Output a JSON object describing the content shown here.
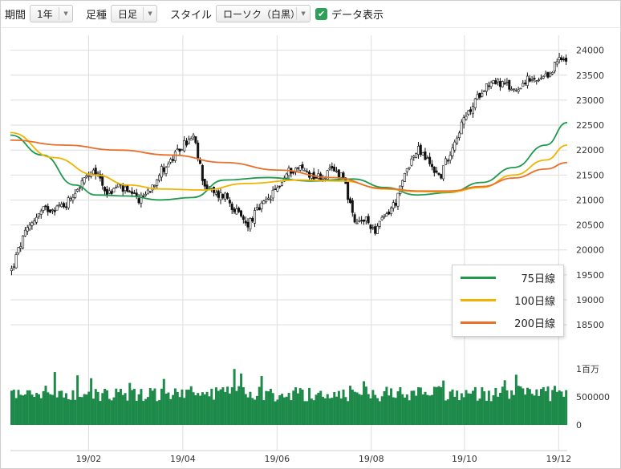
{
  "toolbar": {
    "period_label": "期間",
    "period_value": "1年",
    "candle_label": "足種",
    "candle_value": "日足",
    "style_label": "スタイル",
    "style_value": "ローソク（白黒）",
    "show_data_label": "データ表示",
    "show_data_checked": true
  },
  "colors": {
    "volume": "#1e8a4a",
    "candle": "#111111",
    "ma75": "#1f9a4c",
    "ma100": "#f0b400",
    "ma200": "#e8702a",
    "grid": "#dedede"
  },
  "legend": [
    {
      "label": "75日線",
      "color": "#1f9a4c"
    },
    {
      "label": "100日線",
      "color": "#f0b400"
    },
    {
      "label": "200日線",
      "color": "#e8702a"
    }
  ],
  "chart_data": {
    "type": "candlestick",
    "x_tick_labels": [
      "19/02",
      "19/04",
      "19/06",
      "19/08",
      "19/10",
      "19/12"
    ],
    "price_axis": {
      "ticks": [
        18500,
        19000,
        19500,
        20000,
        20500,
        21000,
        21500,
        22000,
        22500,
        23000,
        23500,
        24000
      ],
      "range": [
        18100,
        24300
      ],
      "labels": [
        "18500",
        "19000",
        "19500",
        "20000",
        "20500",
        "21000",
        "21500",
        "22000",
        "22500",
        "23000",
        "23500",
        "24000"
      ]
    },
    "volume_axis": {
      "range": [
        0,
        1200000
      ],
      "ticks": [
        0,
        500000,
        1000000
      ],
      "labels": [
        "0",
        "500000",
        "1百万"
      ]
    },
    "close_anchors": [
      {
        "week": 0,
        "close": 19600
      },
      {
        "week": 1,
        "close": 20200
      },
      {
        "week": 2,
        "close": 20600
      },
      {
        "week": 3,
        "close": 20800
      },
      {
        "week": 4,
        "close": 20850
      },
      {
        "week": 5,
        "close": 20900
      },
      {
        "week": 6,
        "close": 21200
      },
      {
        "week": 7,
        "close": 21450
      },
      {
        "week": 8,
        "close": 21550
      },
      {
        "week": 9,
        "close": 21100
      },
      {
        "week": 10,
        "close": 21300
      },
      {
        "week": 11,
        "close": 21100
      },
      {
        "week": 12,
        "close": 21000
      },
      {
        "week": 13,
        "close": 21250
      },
      {
        "week": 14,
        "close": 21600
      },
      {
        "week": 15,
        "close": 21800
      },
      {
        "week": 16,
        "close": 22100
      },
      {
        "week": 17,
        "close": 22250
      },
      {
        "week": 18,
        "close": 21300
      },
      {
        "week": 19,
        "close": 21100
      },
      {
        "week": 20,
        "close": 21100
      },
      {
        "week": 21,
        "close": 20750
      },
      {
        "week": 22,
        "close": 20500
      },
      {
        "week": 23,
        "close": 20800
      },
      {
        "week": 24,
        "close": 21000
      },
      {
        "week": 25,
        "close": 21300
      },
      {
        "week": 26,
        "close": 21600
      },
      {
        "week": 27,
        "close": 21650
      },
      {
        "week": 28,
        "close": 21500
      },
      {
        "week": 29,
        "close": 21450
      },
      {
        "week": 30,
        "close": 21600
      },
      {
        "week": 31,
        "close": 21500
      },
      {
        "week": 32,
        "close": 20500
      },
      {
        "week": 33,
        "close": 20600
      },
      {
        "week": 34,
        "close": 20400
      },
      {
        "week": 35,
        "close": 20700
      },
      {
        "week": 36,
        "close": 21000
      },
      {
        "week": 37,
        "close": 21700
      },
      {
        "week": 38,
        "close": 22000
      },
      {
        "week": 39,
        "close": 21750
      },
      {
        "week": 40,
        "close": 21450
      },
      {
        "week": 41,
        "close": 22000
      },
      {
        "week": 42,
        "close": 22500
      },
      {
        "week": 43,
        "close": 22850
      },
      {
        "week": 44,
        "close": 23250
      },
      {
        "week": 45,
        "close": 23400
      },
      {
        "week": 46,
        "close": 23300
      },
      {
        "week": 47,
        "close": 23200
      },
      {
        "week": 48,
        "close": 23400
      },
      {
        "week": 49,
        "close": 23350
      },
      {
        "week": 50,
        "close": 23450
      },
      {
        "week": 51,
        "close": 23800
      },
      {
        "week": 52,
        "close": 23800
      }
    ],
    "series": [
      {
        "name": "75日線",
        "color": "#1f9a4c",
        "points": [
          [
            0,
            22300
          ],
          [
            3,
            21900
          ],
          [
            6,
            21300
          ],
          [
            8,
            21100
          ],
          [
            11,
            21080
          ],
          [
            14,
            21000
          ],
          [
            17,
            21050
          ],
          [
            20,
            21400
          ],
          [
            24,
            21450
          ],
          [
            28,
            21380
          ],
          [
            32,
            21420
          ],
          [
            35,
            21250
          ],
          [
            38,
            21100
          ],
          [
            41,
            21150
          ],
          [
            44,
            21350
          ],
          [
            47,
            21650
          ],
          [
            50,
            22100
          ],
          [
            52,
            22550
          ]
        ]
      },
      {
        "name": "100日線",
        "color": "#f0b400",
        "points": [
          [
            0,
            22350
          ],
          [
            4,
            21850
          ],
          [
            8,
            21500
          ],
          [
            11,
            21300
          ],
          [
            14,
            21220
          ],
          [
            18,
            21200
          ],
          [
            22,
            21330
          ],
          [
            27,
            21400
          ],
          [
            31,
            21380
          ],
          [
            35,
            21220
          ],
          [
            38,
            21170
          ],
          [
            41,
            21160
          ],
          [
            44,
            21250
          ],
          [
            47,
            21500
          ],
          [
            50,
            21800
          ],
          [
            52,
            22100
          ]
        ]
      },
      {
        "name": "200日線",
        "color": "#e8702a",
        "points": [
          [
            0,
            22200
          ],
          [
            5,
            22100
          ],
          [
            10,
            22000
          ],
          [
            15,
            21900
          ],
          [
            20,
            21750
          ],
          [
            25,
            21600
          ],
          [
            30,
            21450
          ],
          [
            35,
            21230
          ],
          [
            38,
            21180
          ],
          [
            41,
            21180
          ],
          [
            44,
            21270
          ],
          [
            47,
            21440
          ],
          [
            50,
            21620
          ],
          [
            52,
            21750
          ]
        ]
      }
    ]
  }
}
